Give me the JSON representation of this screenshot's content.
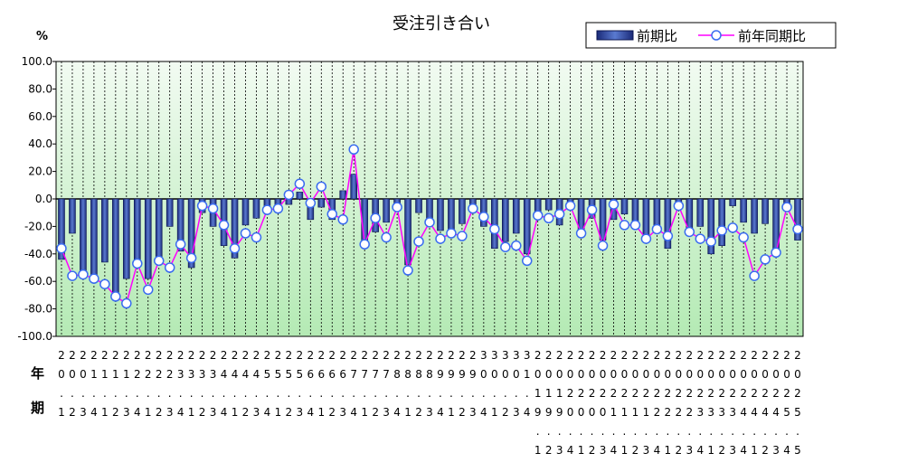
{
  "chart_data": {
    "type": "bar_line",
    "title": "受注引き合い",
    "y_unit": "%",
    "x_labels": [
      "年",
      "期"
    ],
    "categories": [
      "20.1",
      "20.2",
      "20.3",
      "21.4",
      "21.1",
      "21.2",
      "21.3",
      "22.4",
      "22.1",
      "22.2",
      "22.3",
      "23.4",
      "23.1",
      "23.2",
      "23.3",
      "24.4",
      "24.1",
      "24.2",
      "24.3",
      "25.4",
      "25.1",
      "25.2",
      "25.3",
      "26.4",
      "26.1",
      "26.2",
      "26.3",
      "27.4",
      "27.1",
      "27.2",
      "27.3",
      "28.4",
      "28.1",
      "28.2",
      "28.3",
      "29.4",
      "29.1",
      "29.2",
      "29.3",
      "30.4",
      "30.1",
      "30.2",
      "30.3",
      "31.4",
      "2019.1",
      "2019.2",
      "2019.3",
      "2020.4",
      "2020.1",
      "2020.2",
      "2020.3",
      "2021.4",
      "2021.1",
      "2021.2",
      "2021.3",
      "2022.4",
      "2022.1",
      "2022.2",
      "2022.3",
      "2023.4",
      "2023.1",
      "2023.2",
      "2023.3",
      "2024.4",
      "2024.1",
      "2024.2",
      "2024.3",
      "2025.4",
      "2025.5"
    ],
    "series": [
      {
        "name": "前期比",
        "kind": "bar",
        "color": "#2f4fa8",
        "values": [
          -44,
          -25,
          -55,
          -58,
          -46,
          -68,
          -58,
          -45,
          -58,
          -42,
          -20,
          -38,
          -50,
          -10,
          -20,
          -34,
          -43,
          -19,
          -14,
          -7,
          -5,
          -4,
          5,
          -15,
          -6,
          -15,
          6,
          18,
          -30,
          -24,
          -17,
          -6,
          -48,
          -10,
          -19,
          -23,
          -22,
          -18,
          -6,
          -20,
          -36,
          -31,
          -25,
          -40,
          -14,
          -8,
          -19,
          -5,
          -27,
          -14,
          -30,
          -15,
          -11,
          -16,
          -28,
          -19,
          -36,
          -4,
          -24,
          -20,
          -40,
          -34,
          -5,
          -17,
          -25,
          -18,
          -38,
          -8,
          -30
        ]
      },
      {
        "name": "前年同期比",
        "kind": "line",
        "color": "#ff00ff",
        "values": [
          -36,
          -56,
          -55,
          -58,
          -62,
          -71,
          -76,
          -47,
          -66,
          -45,
          -50,
          -33,
          -43,
          -5,
          -7,
          -19,
          -36,
          -25,
          -28,
          -8,
          -7,
          3,
          11,
          -3,
          9,
          -11,
          -15,
          36,
          -33,
          -14,
          -28,
          -6,
          -52,
          -31,
          -17,
          -29,
          -25,
          -27,
          -7,
          -13,
          -22,
          -35,
          -34,
          -45,
          -12,
          -14,
          -11,
          -5,
          -25,
          -8,
          -34,
          -4,
          -19,
          -19,
          -29,
          -22,
          -27,
          -5,
          -24,
          -29,
          -31,
          -23,
          -21,
          -28,
          -56,
          -44,
          -39,
          -6,
          -22
        ]
      }
    ],
    "ylim": [
      -100,
      100
    ],
    "yticks": [
      {
        "value": -100,
        "label": "-100.0"
      },
      {
        "value": -80,
        "label": "-80.0"
      },
      {
        "value": -60,
        "label": "-60.0"
      },
      {
        "value": -40,
        "label": "-40.0"
      },
      {
        "value": -20,
        "label": "-20.0"
      },
      {
        "value": 0,
        "label": "0.0"
      },
      {
        "value": 20,
        "label": "20.0"
      },
      {
        "value": 40,
        "label": "40.0"
      },
      {
        "value": 60,
        "label": "60.0"
      },
      {
        "value": 80,
        "label": "80.0"
      },
      {
        "value": 100,
        "label": "100.0"
      }
    ],
    "legend": "top-right"
  }
}
